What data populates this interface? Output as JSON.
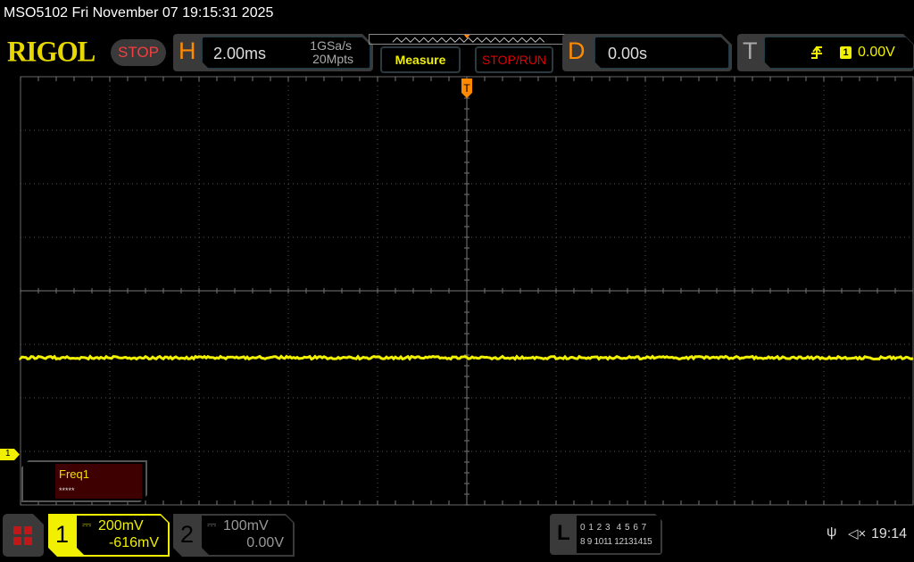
{
  "status_bar": {
    "title": "MSO5102  Fri November 07 19:15:31 2025"
  },
  "logo": "RIGOL",
  "run_state": "STOP",
  "horizontal": {
    "letter": "H",
    "timebase": "2.00ms",
    "sample_rate": "1GSa/s",
    "memory_depth": "20Mpts"
  },
  "buttons": {
    "measure": "Measure",
    "stop_run": "STOP/RUN"
  },
  "delay": {
    "letter": "D",
    "value": "0.00s"
  },
  "trigger": {
    "letter": "T",
    "edge_icon": "rising-edge-icon",
    "source": "1",
    "level": "0.00V",
    "mode": "A"
  },
  "channels": [
    {
      "number": "1",
      "coupling_icon": "dc-coupling-icon",
      "scale": "200mV",
      "offset": "-616mV",
      "color": "#f0f000",
      "marker": "1"
    },
    {
      "number": "2",
      "coupling_icon": "dc-coupling-icon",
      "scale": "100mV",
      "offset": "0.00V",
      "color": "#aaaaaa"
    }
  ],
  "measurement": {
    "name": "Freq1",
    "value": "*****"
  },
  "logic": {
    "letter": "L",
    "row1": "0 1 2 3  4 5 6 7",
    "row2": "8 9 1011 12131415"
  },
  "tray": {
    "usb_icon": "usb-icon",
    "sound_icon": "speaker-muted-icon",
    "clock": "19:14"
  },
  "colors": {
    "ch1": "#f0f000",
    "accent": "#ff8a00",
    "stop": "#f04040"
  }
}
